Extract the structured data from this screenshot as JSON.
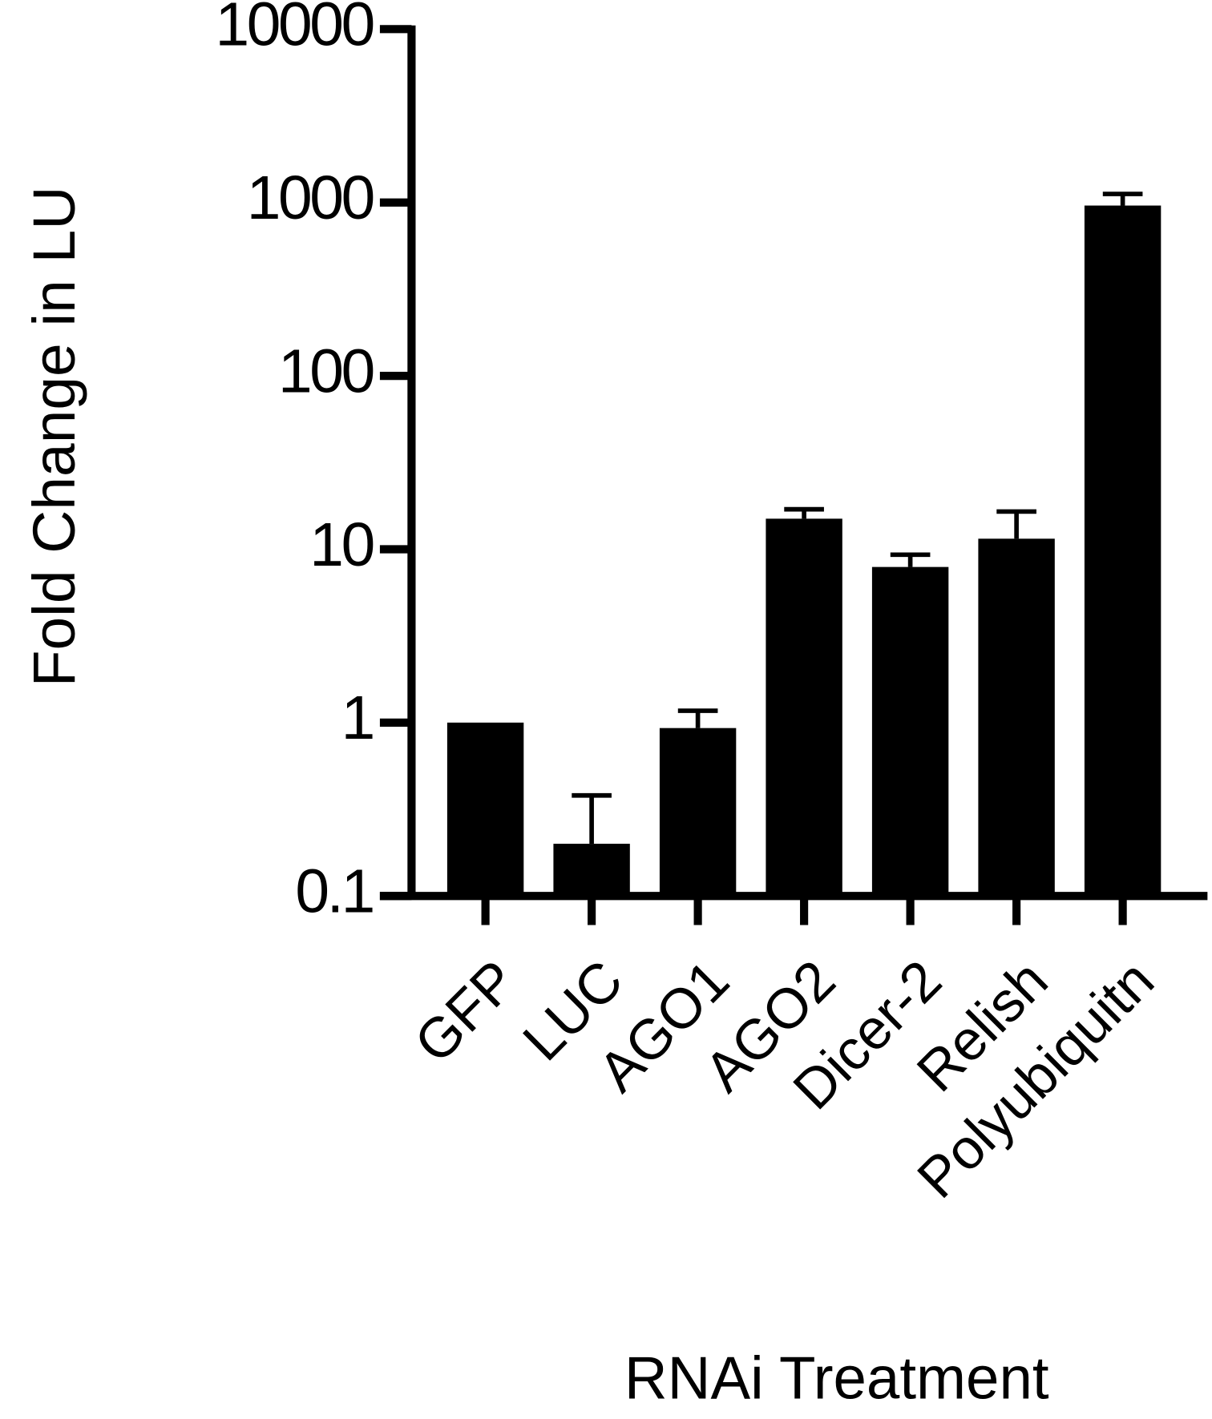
{
  "chart_data": {
    "type": "bar",
    "x_label": "RNAi Treatment",
    "y_label": "Fold Change in LU",
    "categories": [
      "GFP",
      "LUC",
      "AGO1",
      "AGO2",
      "Dicer-2",
      "Relish",
      "Polyubiquitn"
    ],
    "values": [
      1,
      0.2,
      0.93,
      15,
      7.9,
      11.5,
      960
    ],
    "errors": [
      0,
      0.18,
      0.24,
      2,
      1.4,
      5,
      160
    ],
    "color": "#000000",
    "log_scale": true,
    "ylim": [
      0.1,
      10000
    ],
    "yticks": [
      0.1,
      1,
      10,
      100,
      1000,
      10000
    ]
  }
}
